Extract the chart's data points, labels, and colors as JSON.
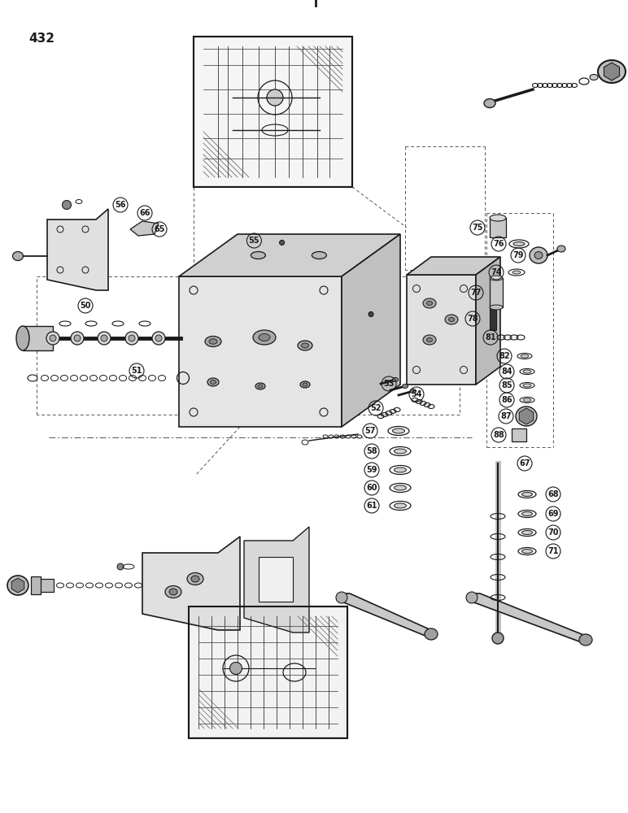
{
  "page_number": "432",
  "background_color": "#ffffff",
  "ink_color": "#1a1a1a",
  "figsize": [
    7.72,
    10.0
  ],
  "dpi": 100
}
